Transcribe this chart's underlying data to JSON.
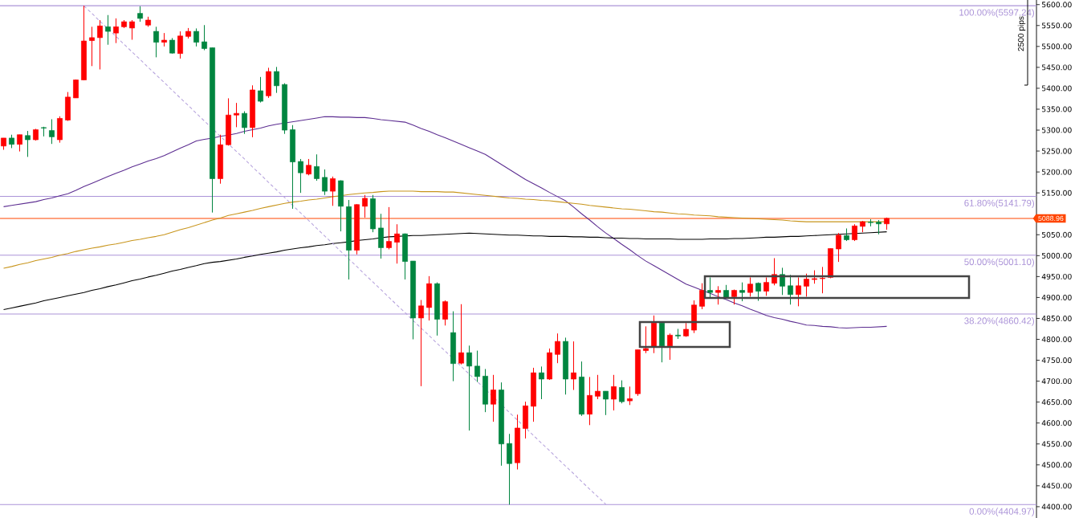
{
  "chart_data": {
    "type": "candlestick",
    "categories": [
      null,
      null,
      null,
      null,
      null,
      null,
      null,
      null,
      null,
      null,
      null,
      null,
      null,
      null,
      null,
      null,
      null,
      null,
      null,
      null,
      null,
      null,
      null,
      null,
      null,
      null,
      null,
      null,
      null,
      null,
      null,
      null,
      null,
      null,
      null,
      null,
      null,
      null,
      null,
      null,
      null,
      null,
      null,
      null,
      null,
      null,
      null,
      null,
      null,
      null,
      null,
      null,
      null,
      null,
      null,
      null,
      null,
      null,
      null,
      null,
      null,
      null,
      null,
      null,
      null,
      null,
      null,
      null,
      null,
      null,
      null,
      null,
      null,
      null,
      null,
      null,
      null,
      null,
      null,
      null,
      null,
      null,
      null,
      null,
      null,
      null,
      null,
      null,
      null,
      null,
      null,
      null,
      null,
      null,
      null,
      null,
      null,
      null,
      null,
      null,
      null,
      null,
      null,
      null,
      null,
      null,
      null,
      null,
      null,
      null,
      null
    ],
    "ohlc": [
      [
        5262,
        5281,
        5253,
        5281
      ],
      [
        5281,
        5289,
        5257,
        5266
      ],
      [
        5266,
        5289,
        5249,
        5289
      ],
      [
        5287,
        5298,
        5236,
        5277
      ],
      [
        5277,
        5303,
        5275,
        5301
      ],
      [
        5306,
        5308,
        5285,
        5305
      ],
      [
        5299,
        5326,
        5267,
        5284
      ],
      [
        5277,
        5333,
        5270,
        5328
      ],
      [
        5324,
        5391,
        5322,
        5379
      ],
      [
        5377,
        5421,
        5377,
        5420
      ],
      [
        5420,
        5597.24,
        5419,
        5513
      ],
      [
        5514,
        5547,
        5453,
        5521
      ],
      [
        5521,
        5563,
        5445,
        5549
      ],
      [
        5547,
        5575,
        5504,
        5536
      ],
      [
        5532,
        5567,
        5508,
        5547
      ],
      [
        5547,
        5563,
        5544,
        5559
      ],
      [
        5544,
        5563,
        5516,
        5559
      ],
      [
        5579,
        5596,
        5559,
        5567
      ],
      [
        5551,
        5571,
        5547,
        5563
      ],
      [
        5536,
        5547,
        5474,
        5510
      ],
      [
        5510,
        5532,
        5500,
        5515
      ],
      [
        5515,
        5520,
        5483,
        5484
      ],
      [
        5483,
        5536,
        5471,
        5525
      ],
      [
        5524,
        5544,
        5519,
        5536
      ],
      [
        5536,
        5543,
        5500,
        5510
      ],
      [
        5511,
        5551,
        5491,
        5495
      ],
      [
        5497,
        5497,
        5103,
        5184
      ],
      [
        5184,
        5289,
        5172,
        5265
      ],
      [
        5265,
        5376,
        5263,
        5336
      ],
      [
        5336,
        5365,
        5307,
        5340
      ],
      [
        5340,
        5345,
        5291,
        5306
      ],
      [
        5306,
        5407,
        5283,
        5396
      ],
      [
        5394,
        5427,
        5366,
        5369
      ],
      [
        5382,
        5449,
        5377,
        5440
      ],
      [
        5440,
        5451,
        5389,
        5406
      ],
      [
        5409,
        5412,
        5291,
        5300
      ],
      [
        5301,
        5312,
        5112,
        5224
      ],
      [
        5225,
        5231,
        5150,
        5198
      ],
      [
        5195,
        5231,
        5192,
        5216
      ],
      [
        5213,
        5242,
        5179,
        5184
      ],
      [
        5187,
        5206,
        5145,
        5154
      ],
      [
        5154,
        5189,
        5119,
        5184
      ],
      [
        5179,
        5180,
        5058,
        5118
      ],
      [
        5117,
        5133,
        4943,
        5013
      ],
      [
        5013,
        5123,
        5003,
        5122
      ],
      [
        5118,
        5145,
        5091,
        5137
      ],
      [
        5136,
        5145,
        5056,
        5064
      ],
      [
        5066,
        5100,
        4993,
        5019
      ],
      [
        5019,
        5116,
        5015,
        5034
      ],
      [
        5032,
        5075,
        4981,
        5052
      ],
      [
        5052,
        5053,
        4943,
        4986
      ],
      [
        4987,
        4987,
        4800,
        4851
      ],
      [
        4851,
        4894,
        4688,
        4880
      ],
      [
        4876,
        4951,
        4845,
        4933
      ],
      [
        4933,
        4936,
        4809,
        4848
      ],
      [
        4848,
        4893,
        4833,
        4890
      ],
      [
        4816,
        4867,
        4700,
        4742
      ],
      [
        4743,
        4884,
        4740,
        4768
      ],
      [
        4768,
        4785,
        4582,
        4736
      ],
      [
        4736,
        4773,
        4698,
        4711
      ],
      [
        4712,
        4729,
        4626,
        4645
      ],
      [
        4645,
        4715,
        4603,
        4679
      ],
      [
        4679,
        4697,
        4498,
        4550
      ],
      [
        4551,
        4574,
        4404.97,
        4503
      ],
      [
        4505,
        4620,
        4489,
        4588
      ],
      [
        4587,
        4651,
        4563,
        4641
      ],
      [
        4640,
        4732,
        4603,
        4720
      ],
      [
        4720,
        4735,
        4657,
        4705
      ],
      [
        4705,
        4778,
        4703,
        4768
      ],
      [
        4764,
        4814,
        4743,
        4795
      ],
      [
        4795,
        4804,
        4668,
        4705
      ],
      [
        4705,
        4795,
        4679,
        4720
      ],
      [
        4710,
        4747,
        4617,
        4621
      ],
      [
        4621,
        4710,
        4595,
        4666
      ],
      [
        4664,
        4715,
        4657,
        4676
      ],
      [
        4676,
        4676,
        4619,
        4657
      ],
      [
        4657,
        4715,
        4630,
        4687
      ],
      [
        4685,
        4702,
        4647,
        4651
      ],
      [
        4653,
        4687,
        4643,
        4658
      ],
      [
        4670,
        4775,
        4665,
        4775
      ],
      [
        4773,
        4831,
        4767,
        4778
      ],
      [
        4782,
        4857,
        4767,
        4839
      ],
      [
        4839,
        4839,
        4745,
        4784
      ],
      [
        4784,
        4814,
        4751,
        4810
      ],
      [
        4810,
        4825,
        4801,
        4808
      ],
      [
        4808,
        4839,
        4806,
        4824
      ],
      [
        4822,
        4893,
        4815,
        4882
      ],
      [
        4879,
        4934,
        4872,
        4917
      ],
      [
        4917,
        4948,
        4900,
        4912
      ],
      [
        4912,
        4927,
        4883,
        4917
      ],
      [
        4917,
        4930,
        4898,
        4900
      ],
      [
        4902,
        4919,
        4883,
        4917
      ],
      [
        4917,
        4936,
        4891,
        4912
      ],
      [
        4912,
        4948,
        4902,
        4932
      ],
      [
        4934,
        4936,
        4892,
        4915
      ],
      [
        4915,
        4948,
        4904,
        4936
      ],
      [
        4934,
        4994,
        4929,
        4955
      ],
      [
        4955,
        4971,
        4906,
        4927
      ],
      [
        4928,
        4954,
        4883,
        4907
      ],
      [
        4907,
        4948,
        4879,
        4928
      ],
      [
        4927,
        4957,
        4902,
        4944
      ],
      [
        4943,
        4965,
        4933,
        4945
      ],
      [
        4945,
        4973,
        4910,
        4946
      ],
      [
        4948,
        5017,
        4946,
        5017
      ],
      [
        5016,
        5054,
        4985,
        5049
      ],
      [
        5048,
        5065,
        5035,
        5038
      ],
      [
        5038,
        5075,
        5035,
        5071
      ],
      [
        5070,
        5083,
        5056,
        5081
      ],
      [
        5080,
        5087,
        5070,
        5079
      ],
      [
        5080,
        5085,
        5051,
        5076
      ],
      [
        5076,
        5091,
        5062,
        5089
      ]
    ],
    "colors": [
      "#ff0000",
      "#00853f",
      "#ff0000",
      "#00853f",
      "#ff0000",
      "#00853f",
      "#00853f",
      "#ff0000",
      "#ff0000",
      "#ff0000",
      "#ff0000",
      "#ff0000",
      "#ff0000",
      "#00853f",
      "#ff0000",
      "#ff0000",
      "#ff0000",
      "#00853f",
      "#ff0000",
      "#00853f",
      "#ff0000",
      "#00853f",
      "#ff0000",
      "#ff0000",
      "#00853f",
      "#00853f",
      "#00853f",
      "#ff0000",
      "#ff0000",
      "#ff0000",
      "#00853f",
      "#ff0000",
      "#00853f",
      "#ff0000",
      "#00853f",
      "#00853f",
      "#00853f",
      "#00853f",
      "#ff0000",
      "#00853f",
      "#00853f",
      "#ff0000",
      "#00853f",
      "#00853f",
      "#ff0000",
      "#ff0000",
      "#00853f",
      "#00853f",
      "#ff0000",
      "#ff0000",
      "#00853f",
      "#00853f",
      "#ff0000",
      "#ff0000",
      "#00853f",
      "#ff0000",
      "#00853f",
      "#ff0000",
      "#00853f",
      "#00853f",
      "#00853f",
      "#ff0000",
      "#00853f",
      "#00853f",
      "#ff0000",
      "#ff0000",
      "#ff0000",
      "#00853f",
      "#ff0000",
      "#ff0000",
      "#00853f",
      "#ff0000",
      "#00853f",
      "#ff0000",
      "#ff0000",
      "#00853f",
      "#ff0000",
      "#00853f",
      "#ff0000",
      "#ff0000",
      "#ff0000",
      "#ff0000",
      "#00853f",
      "#ff0000",
      "#00853f",
      "#ff0000",
      "#ff0000",
      "#ff0000",
      "#00853f",
      "#ff0000",
      "#00853f",
      "#ff0000",
      "#00853f",
      "#ff0000",
      "#00853f",
      "#ff0000",
      "#ff0000",
      "#00853f",
      "#00853f",
      "#ff0000",
      "#ff0000",
      "#ff0000",
      "#ff0000",
      "#ff0000",
      "#ff0000",
      "#00853f",
      "#ff0000",
      "#ff0000",
      "#00853f",
      "#00853f",
      "#ff0000"
    ],
    "series": [
      {
        "type": "line",
        "color": "#5c2d91",
        "values": [
          5117,
          5120,
          5123,
          5126,
          5129,
          5134,
          5138,
          5143,
          5148,
          5156,
          5165,
          5173,
          5181,
          5189,
          5197,
          5204,
          5212,
          5219,
          5226,
          5232,
          5239,
          5248,
          5257,
          5265,
          5274,
          5278,
          5281,
          5285,
          5288,
          5292,
          5297,
          5301,
          5305,
          5310,
          5314,
          5317,
          5320,
          5323,
          5326,
          5329,
          5332,
          5332,
          5331,
          5331,
          5330,
          5330,
          5328,
          5325,
          5323,
          5321,
          5319,
          5312,
          5304,
          5297,
          5289,
          5282,
          5274,
          5266,
          5258,
          5250,
          5242,
          5230,
          5218,
          5206,
          5194,
          5182,
          5172,
          5162,
          5151,
          5141,
          5131,
          5116,
          5100,
          5085,
          5069,
          5054,
          5041,
          5027,
          5014,
          5000,
          4987,
          4976,
          4965,
          4954,
          4943,
          4932,
          4925,
          4917,
          4910,
          4902,
          4895,
          4887,
          4880,
          4872,
          4865,
          4857,
          4852,
          4848,
          4843,
          4839,
          4834,
          4833,
          4831,
          4830,
          4828,
          4827,
          4828,
          4829,
          4829,
          4830,
          4831
        ]
      },
      {
        "type": "line",
        "color": "#c8951c",
        "values": [
          4970,
          4974,
          4979,
          4983,
          4988,
          4992,
          4996,
          5001,
          5005,
          5010,
          5014,
          5018,
          5021,
          5025,
          5028,
          5032,
          5036,
          5039,
          5043,
          5046,
          5050,
          5056,
          5062,
          5067,
          5073,
          5079,
          5085,
          5090,
          5096,
          5100,
          5104,
          5108,
          5113,
          5117,
          5121,
          5125,
          5128,
          5130,
          5133,
          5135,
          5138,
          5141,
          5143,
          5146,
          5148,
          5150,
          5151,
          5153,
          5154,
          5154,
          5154,
          5154,
          5153,
          5153,
          5153,
          5152,
          5152,
          5150,
          5148,
          5146,
          5144,
          5142,
          5140,
          5138,
          5137,
          5135,
          5134,
          5132,
          5131,
          5129,
          5127,
          5125,
          5123,
          5120,
          5118,
          5116,
          5114,
          5112,
          5111,
          5109,
          5107,
          5105,
          5104,
          5102,
          5100,
          5099,
          5097,
          5096,
          5095,
          5093,
          5092,
          5091,
          5090,
          5089,
          5088,
          5087,
          5086,
          5085,
          5083,
          5082,
          5081,
          5081,
          5081,
          5081,
          5081,
          5081,
          5081,
          5081,
          5081,
          5081,
          5081
        ]
      },
      {
        "type": "line",
        "color": "#000000",
        "values": [
          4871,
          4875,
          4879,
          4883,
          4887,
          4892,
          4896,
          4900,
          4904,
          4908,
          4912,
          4917,
          4921,
          4926,
          4930,
          4935,
          4940,
          4944,
          4949,
          4953,
          4958,
          4963,
          4967,
          4972,
          4976,
          4981,
          4984,
          4986,
          4989,
          4992,
          4996,
          4999,
          5003,
          5006,
          5009,
          5013,
          5016,
          5019,
          5021,
          5024,
          5026,
          5029,
          5031,
          5033,
          5036,
          5038,
          5040,
          5043,
          5045,
          5046,
          5047,
          5048,
          5048,
          5049,
          5050,
          5051,
          5052,
          5053,
          5054,
          5053,
          5052,
          5051,
          5050,
          5049,
          5049,
          5048,
          5047,
          5047,
          5046,
          5046,
          5046,
          5045,
          5045,
          5044,
          5044,
          5043,
          5042,
          5042,
          5041,
          5041,
          5040,
          5040,
          5040,
          5040,
          5039,
          5039,
          5039,
          5039,
          5040,
          5040,
          5040,
          5041,
          5041,
          5042,
          5043,
          5044,
          5044,
          5045,
          5046,
          5046,
          5047,
          5048,
          5049,
          5050,
          5051,
          5052,
          5053,
          5054,
          5055,
          5056,
          5057
        ]
      },
      {
        "type": "line",
        "color": "#b7a4dd",
        "line_style": "dashed",
        "values": [
          null,
          null,
          null,
          null,
          null,
          null,
          null,
          null,
          null,
          null,
          5597,
          5579,
          5560,
          5542,
          5524,
          5505,
          5487,
          5469,
          5450,
          5432,
          5414,
          5395,
          5377,
          5359,
          5340,
          5322,
          5304,
          5285,
          5267,
          5249,
          5231,
          5212,
          5194,
          5175,
          5157,
          5139,
          5120,
          5102,
          5084,
          5065,
          5047,
          5029,
          5010,
          4992,
          4974,
          4955,
          4937,
          4919,
          4900,
          4882,
          4864,
          4845,
          4827,
          4809,
          4790,
          4772,
          4754,
          4735,
          4717,
          4699,
          4681,
          4662,
          4644,
          4625,
          4607,
          4589,
          4570,
          4552,
          4534,
          4515,
          4497,
          4479,
          4460,
          4442,
          4424,
          4406,
          null,
          null,
          null,
          null,
          null,
          null,
          null,
          null,
          null,
          null,
          null,
          null,
          null,
          null,
          null,
          null,
          null,
          null,
          null,
          null,
          null,
          null,
          null,
          null,
          null,
          null,
          null,
          null,
          null,
          null,
          null,
          null,
          null,
          null,
          null
        ]
      }
    ],
    "ylim": [
      4373,
      5611
    ],
    "yticks": [
      {
        "value": 4400,
        "label": "4400.00"
      },
      {
        "value": 4450,
        "label": "4450.00"
      },
      {
        "value": 4500,
        "label": "4500.00"
      },
      {
        "value": 4550,
        "label": "4550.00"
      },
      {
        "value": 4600,
        "label": "4600.00"
      },
      {
        "value": 4650,
        "label": "4650.00"
      },
      {
        "value": 4700,
        "label": "4700.00"
      },
      {
        "value": 4750,
        "label": "4750.00"
      },
      {
        "value": 4800,
        "label": "4800.00"
      },
      {
        "value": 4850,
        "label": "4850.00"
      },
      {
        "value": 4900,
        "label": "4900.00"
      },
      {
        "value": 4950,
        "label": "4950.00"
      },
      {
        "value": 5000,
        "label": "5000.00"
      },
      {
        "value": 5050,
        "label": "5050.00"
      },
      {
        "value": 5150,
        "label": "5150.00"
      },
      {
        "value": 5200,
        "label": "5200.00"
      },
      {
        "value": 5250,
        "label": "5250.00"
      },
      {
        "value": 5300,
        "label": "5300.00"
      },
      {
        "value": 5350,
        "label": "5350.00"
      },
      {
        "value": 5400,
        "label": "5400.00"
      },
      {
        "value": 5450,
        "label": "5450.00"
      },
      {
        "value": 5500,
        "label": "5500.00"
      },
      {
        "value": 5550,
        "label": "5550.00"
      },
      {
        "value": 5600,
        "label": "5600.00"
      }
    ],
    "tick_labels": "y",
    "ref_lines": [
      {
        "axis": "y",
        "value": 5597.24,
        "label": "100.00%(5597.24)",
        "color": "#ab93d8"
      },
      {
        "axis": "y",
        "value": 5141.79,
        "label": "61.80%(5141.79)",
        "color": "#ab93d8"
      },
      {
        "axis": "y",
        "value": 5001.1,
        "label": "50.00%(5001.10)",
        "color": "#ab93d8"
      },
      {
        "axis": "y",
        "value": 4860.42,
        "label": "38.20%(4860.42)",
        "color": "#ab93d8"
      },
      {
        "axis": "y",
        "value": 4404.97,
        "label": "0.00%(4404.97)",
        "color": "#ab93d8"
      },
      {
        "axis": "y",
        "value": 5088.96,
        "color": "#ff4500"
      }
    ],
    "annotations": [
      "2500 pips",
      "5088.96"
    ]
  }
}
